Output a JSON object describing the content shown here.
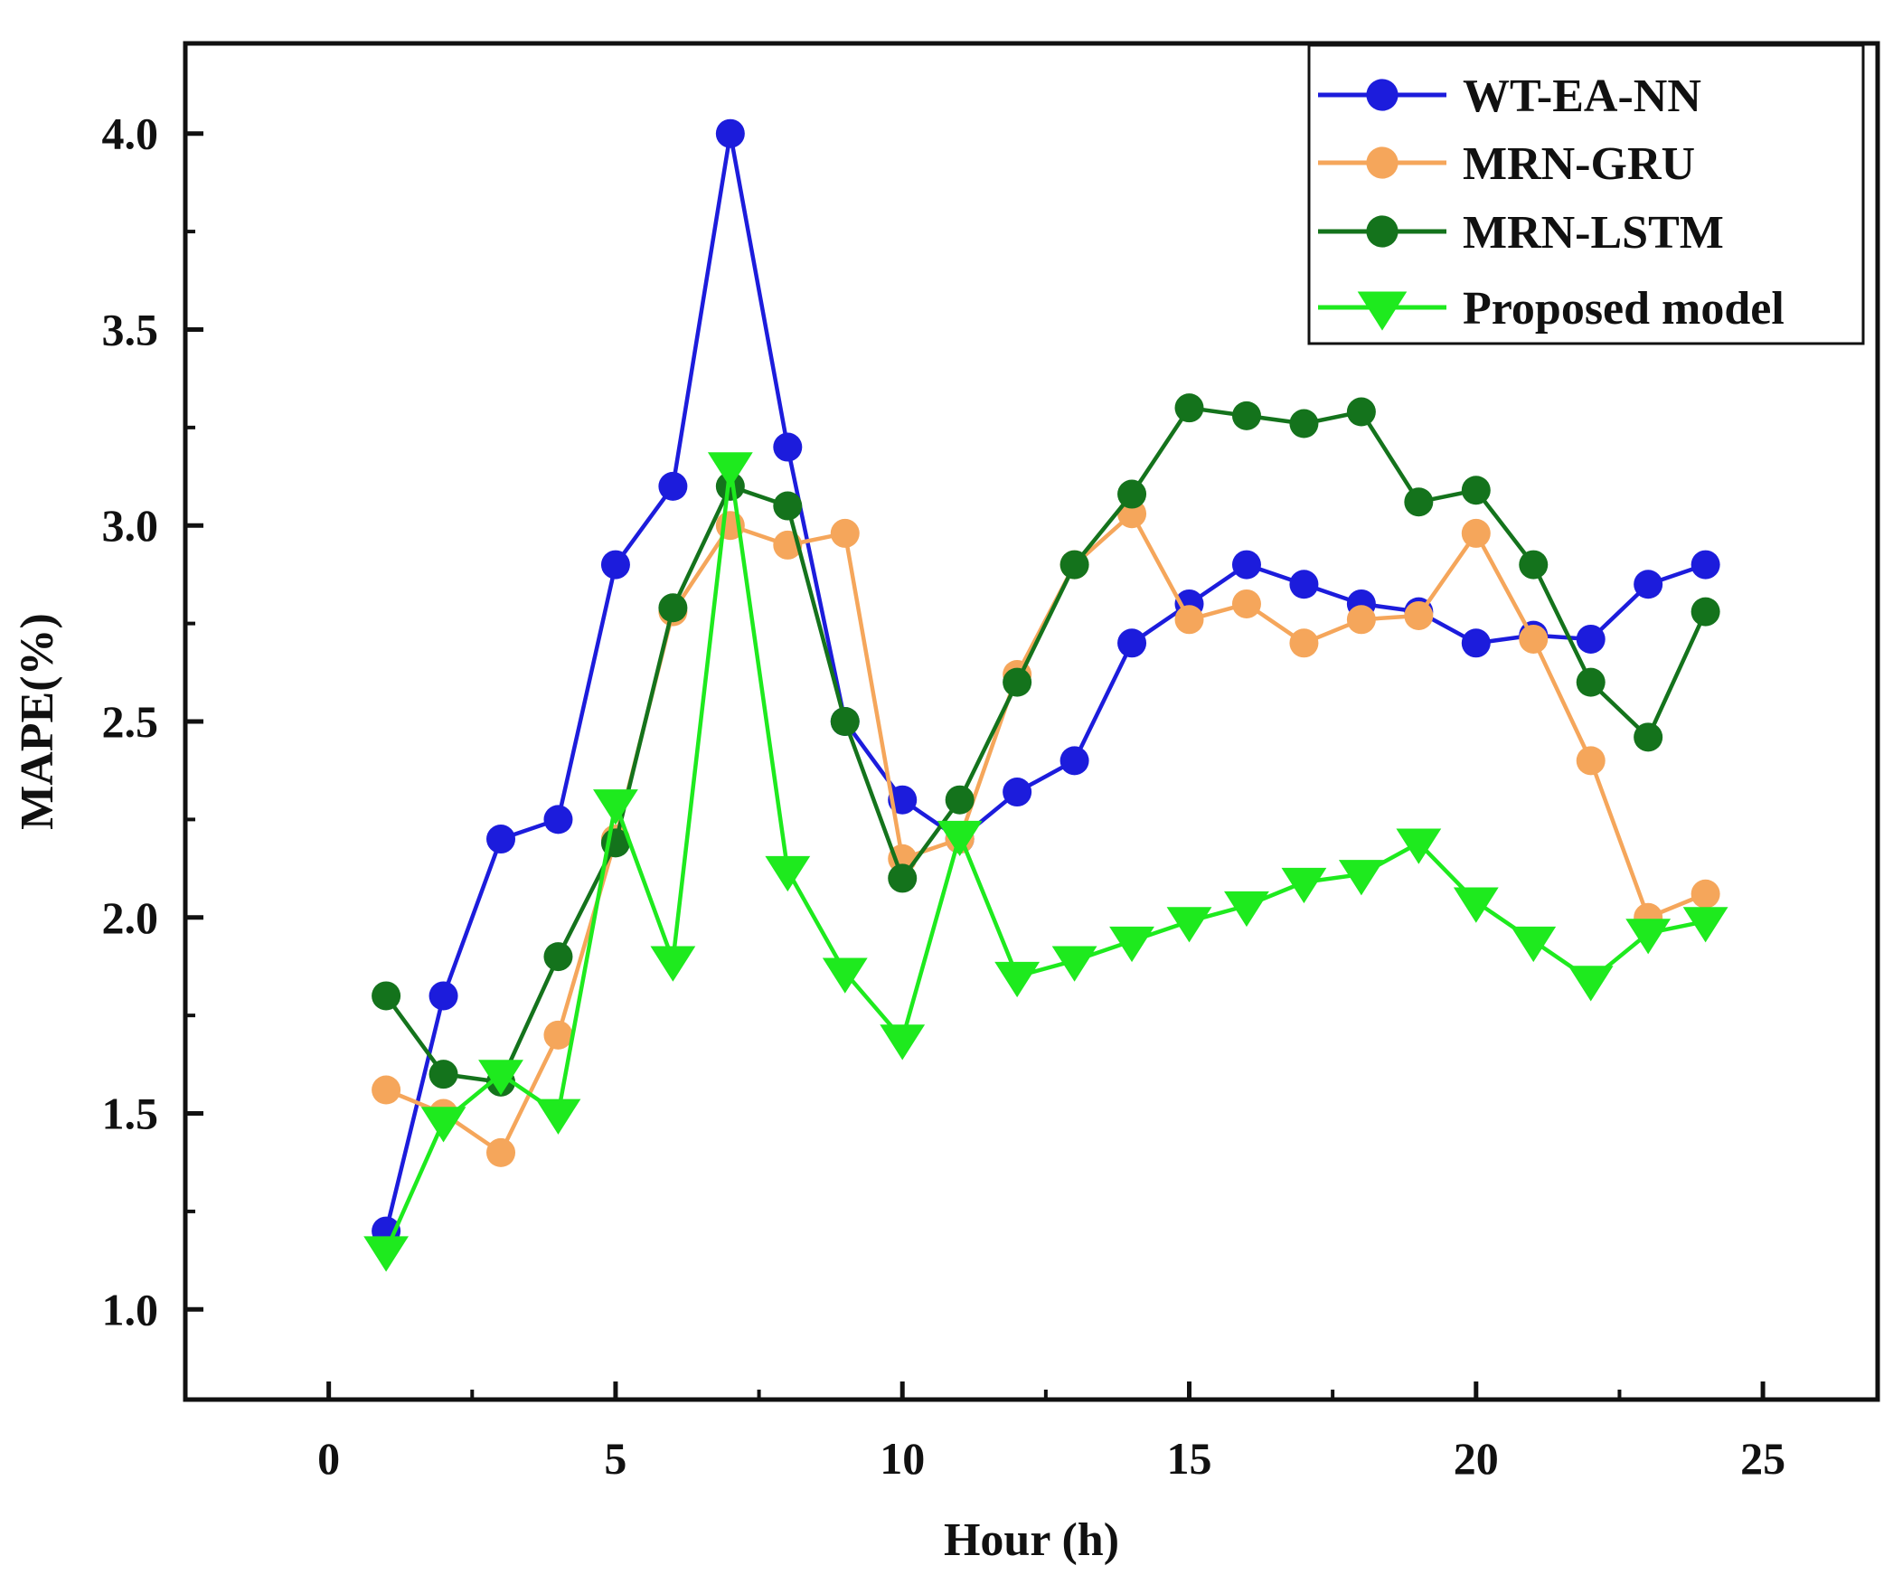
{
  "chart_data": {
    "type": "line",
    "title": "",
    "xlabel": "Hour (h)",
    "ylabel": "MAPE(%)",
    "xlim": [
      -2.5,
      27
    ],
    "ylim": [
      0.77,
      4.23
    ],
    "x_ticks": [
      "0",
      "5",
      "10",
      "15",
      "20",
      "25"
    ],
    "y_ticks": [
      "1.0",
      "1.5",
      "2.0",
      "2.5",
      "3.0",
      "3.5",
      "4.0"
    ],
    "grid": false,
    "legend_position": "top-right",
    "x": [
      1,
      2,
      3,
      4,
      5,
      6,
      7,
      8,
      9,
      10,
      11,
      12,
      13,
      14,
      15,
      16,
      17,
      18,
      19,
      20,
      21,
      22,
      23,
      24
    ],
    "series": [
      {
        "name": "WT-EA-NN",
        "color": "#1c1cdc",
        "marker": "circle",
        "values": [
          1.2,
          1.8,
          2.2,
          2.25,
          2.9,
          3.1,
          4.0,
          3.2,
          2.5,
          2.3,
          2.2,
          2.32,
          2.4,
          2.7,
          2.8,
          2.9,
          2.85,
          2.8,
          2.78,
          2.7,
          2.72,
          2.71,
          2.85,
          2.9
        ]
      },
      {
        "name": "MRN-GRU",
        "color": "#f5a65b",
        "marker": "circle",
        "values": [
          1.56,
          1.5,
          1.4,
          1.7,
          2.2,
          2.78,
          3.0,
          2.95,
          2.98,
          2.15,
          2.2,
          2.62,
          2.9,
          3.03,
          2.76,
          2.8,
          2.7,
          2.76,
          2.77,
          2.98,
          2.71,
          2.4,
          2.0,
          2.06
        ]
      },
      {
        "name": "MRN-LSTM",
        "color": "#14731c",
        "marker": "circle",
        "values": [
          1.8,
          1.6,
          1.58,
          1.9,
          2.19,
          2.79,
          3.1,
          3.05,
          2.5,
          2.1,
          2.3,
          2.6,
          2.9,
          3.08,
          3.3,
          3.28,
          3.26,
          3.29,
          3.06,
          3.09,
          2.9,
          2.6,
          2.46,
          2.78
        ]
      },
      {
        "name": "Proposed model",
        "color": "#1eea1e",
        "marker": "triangle-down",
        "values": [
          1.15,
          1.48,
          1.6,
          1.5,
          2.29,
          1.89,
          3.15,
          2.12,
          1.86,
          1.69,
          2.21,
          1.85,
          1.89,
          1.94,
          1.99,
          2.03,
          2.09,
          2.11,
          2.19,
          2.04,
          1.94,
          1.84,
          1.96,
          1.99
        ]
      }
    ]
  }
}
